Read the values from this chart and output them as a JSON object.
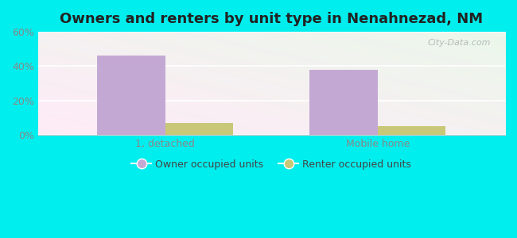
{
  "title": "Owners and renters by unit type in Nenahnezad, NM",
  "categories": [
    "1, detached",
    "Mobile home"
  ],
  "owner_values": [
    46,
    38
  ],
  "renter_values": [
    7,
    5
  ],
  "owner_color": "#c4a8d4",
  "renter_color": "#c8c878",
  "ylim": [
    0,
    60
  ],
  "yticks": [
    0,
    20,
    40,
    60
  ],
  "ytick_labels": [
    "0%",
    "20%",
    "40%",
    "60%"
  ],
  "bar_width": 0.32,
  "outer_background": "#00eeee",
  "title_fontsize": 13,
  "legend_labels": [
    "Owner occupied units",
    "Renter occupied units"
  ],
  "watermark": "City-Data.com",
  "tick_color": "#888888",
  "grid_color": "#dddddd"
}
